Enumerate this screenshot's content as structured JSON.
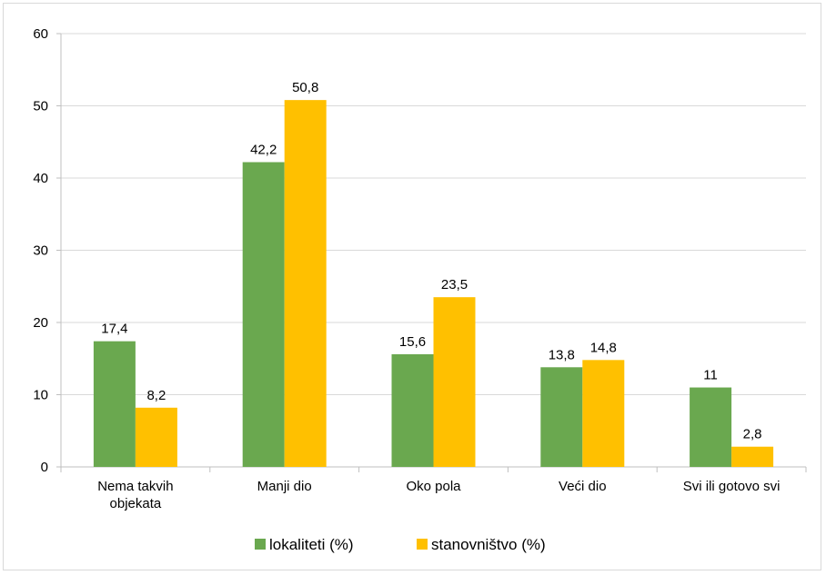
{
  "chart_data": {
    "type": "bar",
    "categories": [
      [
        "Nema takvih",
        "objekata"
      ],
      [
        "Manji dio"
      ],
      [
        "Oko pola"
      ],
      [
        "Veći dio"
      ],
      [
        "Svi ili gotovo svi"
      ]
    ],
    "series": [
      {
        "name": "lokaliteti (%)",
        "color": "#6aa84f",
        "values": [
          17.4,
          42.2,
          15.6,
          13.8,
          11
        ],
        "labels": [
          "17,4",
          "42,2",
          "15,6",
          "13,8",
          "11"
        ]
      },
      {
        "name": "stanovništvo (%)",
        "color": "#ffc000",
        "values": [
          8.2,
          50.8,
          23.5,
          14.8,
          2.8
        ],
        "labels": [
          "8,2",
          "50,8",
          "23,5",
          "14,8",
          "2,8"
        ]
      }
    ],
    "ylim": [
      0,
      60
    ],
    "yticks": [
      0,
      10,
      20,
      30,
      40,
      50,
      60
    ],
    "grid": true,
    "legend_position": "bottom"
  }
}
